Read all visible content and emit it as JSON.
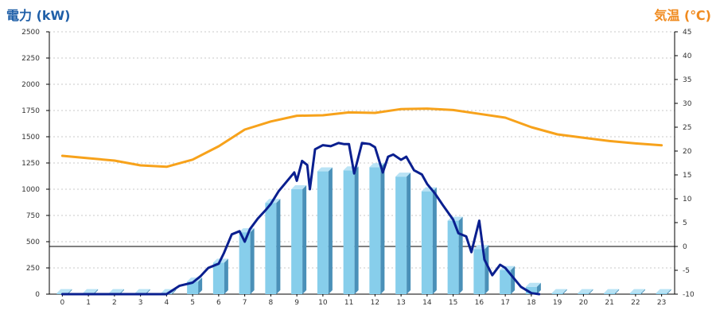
{
  "chart_data": {
    "type": "bar",
    "title_left": "電力 (kW)",
    "title_right": "気温 (℃)",
    "categories": [
      "0",
      "1",
      "2",
      "3",
      "4",
      "5",
      "6",
      "7",
      "8",
      "9",
      "10",
      "11",
      "12",
      "13",
      "14",
      "15",
      "16",
      "17",
      "18",
      "19",
      "20",
      "21",
      "22",
      "23"
    ],
    "y_left": {
      "range": [
        0,
        2500
      ],
      "ticks": [
        0,
        250,
        500,
        750,
        1000,
        1250,
        1500,
        1750,
        2000,
        2250,
        2500
      ]
    },
    "y_right": {
      "range": [
        -10,
        45
      ],
      "ticks": [
        -10,
        -5,
        0,
        5,
        10,
        15,
        20,
        25,
        30,
        35,
        40,
        45
      ]
    },
    "grid": true,
    "series": [
      {
        "kind": "bar",
        "axis": "left",
        "color": "#87ceeb",
        "values": [
          10,
          10,
          10,
          10,
          10,
          120,
          300,
          590,
          870,
          1000,
          1170,
          1180,
          1210,
          1120,
          980,
          700,
          430,
          230,
          70,
          10,
          10,
          10,
          10,
          10
        ]
      },
      {
        "kind": "line",
        "axis": "right",
        "color": "#f7a21b",
        "x": [
          0,
          1,
          2,
          3,
          4,
          5,
          6,
          7,
          8,
          9,
          10,
          11,
          12,
          13,
          14,
          15,
          16,
          17,
          18,
          19,
          20,
          21,
          22,
          23
        ],
        "values": [
          19.0,
          18.5,
          18.0,
          17.0,
          16.7,
          18.2,
          21.0,
          24.5,
          26.2,
          27.4,
          27.5,
          28.1,
          28.0,
          28.8,
          28.9,
          28.6,
          27.8,
          27.0,
          25.0,
          23.5,
          22.8,
          22.1,
          21.6,
          21.2
        ]
      },
      {
        "kind": "line",
        "axis": "left",
        "color": "#0a1f8f",
        "x": [
          0,
          1,
          2,
          3,
          4,
          4.5,
          5,
          5.3,
          5.6,
          6,
          6.2,
          6.5,
          6.8,
          7,
          7.2,
          7.5,
          7.8,
          8,
          8.3,
          8.6,
          8.9,
          9,
          9.2,
          9.4,
          9.5,
          9.7,
          10,
          10.3,
          10.6,
          10.8,
          11,
          11.2,
          11.5,
          11.8,
          12,
          12.3,
          12.5,
          12.7,
          13,
          13.2,
          13.5,
          13.8,
          14,
          14.3,
          14.6,
          15,
          15.2,
          15.5,
          15.7,
          16,
          16.2,
          16.5,
          16.8,
          17,
          17.3,
          17.6,
          18,
          18.3
        ],
        "values": [
          0,
          0,
          0,
          0,
          0,
          80,
          110,
          170,
          250,
          290,
          390,
          570,
          600,
          500,
          620,
          720,
          800,
          860,
          980,
          1070,
          1160,
          1080,
          1270,
          1230,
          1000,
          1380,
          1420,
          1410,
          1440,
          1430,
          1430,
          1150,
          1440,
          1430,
          1400,
          1160,
          1310,
          1330,
          1280,
          1310,
          1180,
          1140,
          1050,
          960,
          850,
          710,
          580,
          550,
          400,
          700,
          330,
          180,
          280,
          250,
          160,
          70,
          10,
          0
        ]
      }
    ]
  }
}
